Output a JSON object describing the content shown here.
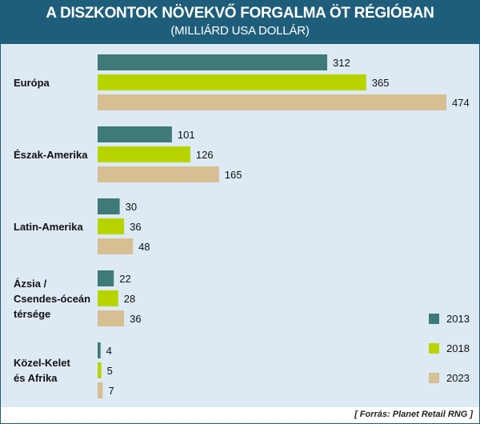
{
  "header": {
    "title": "A DISZKONTOK NÖVEKVŐ FORGALMA ÖT RÉGIÓBAN",
    "subtitle": "(MILLIÁRD USA DOLLÁR)"
  },
  "footer": {
    "source": "[ Forrás: Planet Retail RNG ]"
  },
  "colors": {
    "header_bg": "#1f5e7a",
    "plot_bg": "#ddeaf3",
    "2013": "#3d7a78",
    "2018": "#b8d400",
    "2023": "#d6bf93"
  },
  "chart_data": {
    "type": "bar",
    "orientation": "horizontal",
    "title": "A DISZKONTOK NÖVEKVŐ FORGALMA ÖT RÉGIÓBAN",
    "subtitle": "(MILLIÁRD USA DOLLÁR)",
    "categories": [
      "Európa",
      "Észak-Amerika",
      "Latin-Amerika",
      "Ázsia / Csendes-óceán térsége",
      "Közel-Kelet és Afrika"
    ],
    "category_lines": [
      [
        "Európa"
      ],
      [
        "Észak-Amerika"
      ],
      [
        "Latin-Amerika"
      ],
      [
        "Ázsia /",
        "Csendes-óceán",
        "térsége"
      ],
      [
        "Közel-Kelet",
        "és Afrika"
      ]
    ],
    "series": [
      {
        "name": "2013",
        "color": "#3d7a78",
        "values": [
          312,
          101,
          30,
          22,
          4
        ]
      },
      {
        "name": "2018",
        "color": "#b8d400",
        "values": [
          365,
          126,
          36,
          28,
          5
        ]
      },
      {
        "name": "2023",
        "color": "#d6bf93",
        "values": [
          474,
          165,
          48,
          36,
          7
        ]
      }
    ],
    "xlim": [
      0,
      474
    ],
    "grid": false,
    "legend_position": "bottom-right",
    "data_labels": true
  }
}
